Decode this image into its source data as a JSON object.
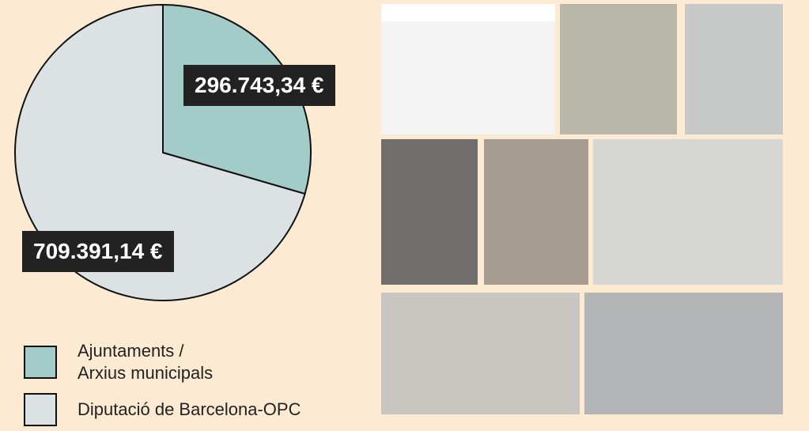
{
  "chart_data": {
    "type": "pie",
    "categories": [
      "Ajuntaments / Arxius municipals",
      "Diputació de Barcelona-OPC"
    ],
    "values": [
      296743.34,
      709391.14
    ],
    "value_labels": [
      "296.743,34 €",
      "709.391,14 €"
    ],
    "colors": [
      "#a3cbc8",
      "#dce1e3"
    ]
  }
}
